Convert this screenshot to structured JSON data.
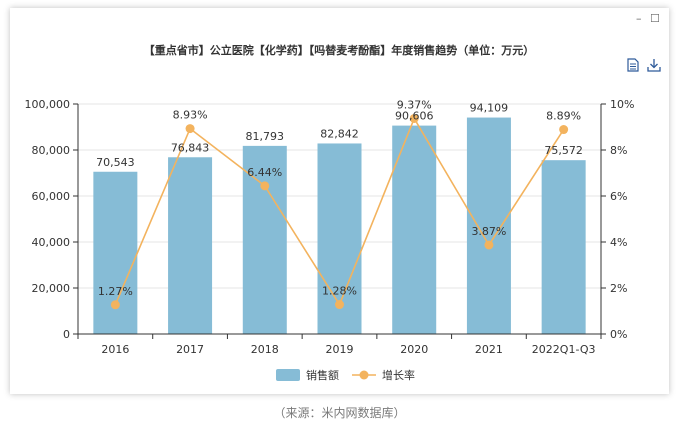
{
  "window": {
    "minimize_label": "–",
    "maximize_label": "☐"
  },
  "toolbar": {
    "doc_icon": "document-icon",
    "download_icon": "download-icon"
  },
  "source_note": "（来源：米内网数据库）",
  "colors": {
    "bar": "#86bcd6",
    "line": "#f3b35e",
    "axis": "#333333",
    "grid": "#e5e5e5"
  },
  "chart_data": {
    "type": "bar",
    "title": "【重点省市】公立医院【化学药】【吗替麦考酚酯】年度销售趋势（单位：万元）",
    "categories": [
      "2016",
      "2017",
      "2018",
      "2019",
      "2020",
      "2021",
      "2022Q1-Q3"
    ],
    "series": [
      {
        "name": "销售额",
        "type": "bar",
        "axis": "left",
        "values": [
          70543,
          76843,
          81793,
          82842,
          90606,
          94109,
          75572
        ],
        "labels": [
          "70,543",
          "76,843",
          "81,793",
          "82,842",
          "90,606",
          "94,109",
          "75,572"
        ]
      },
      {
        "name": "增长率",
        "type": "line",
        "axis": "right",
        "values": [
          1.27,
          8.93,
          6.44,
          1.28,
          9.37,
          3.87,
          8.89
        ],
        "labels": [
          "1.27%",
          "8.93%",
          "6.44%",
          "1.28%",
          "9.37%",
          "3.87%",
          "8.89%"
        ]
      }
    ],
    "yleft": {
      "min": 0,
      "max": 100000,
      "ticks": [
        "0",
        "20,000",
        "40,000",
        "60,000",
        "80,000",
        "100,000"
      ]
    },
    "yright": {
      "min": 0,
      "max": 10,
      "ticks": [
        "0%",
        "2%",
        "4%",
        "6%",
        "8%",
        "10%"
      ]
    },
    "grid": true,
    "legend_position": "bottom"
  }
}
